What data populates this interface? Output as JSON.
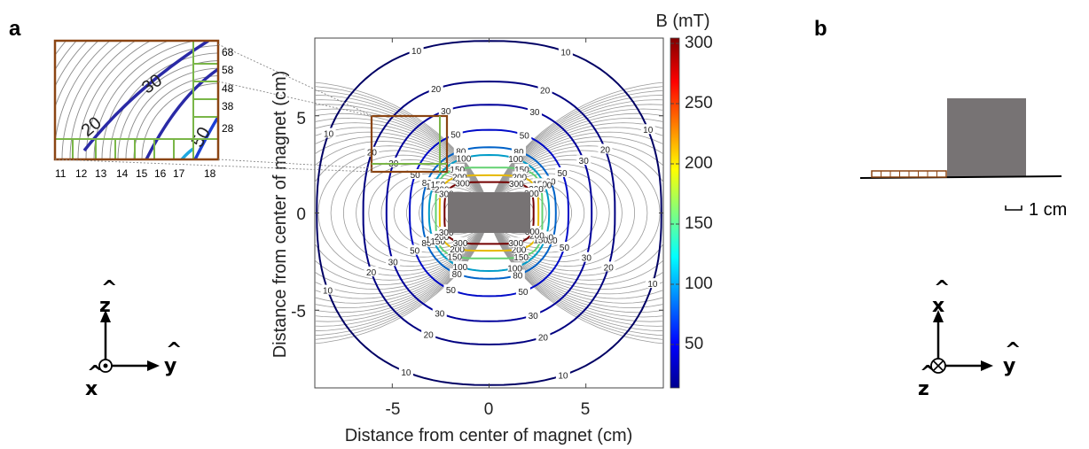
{
  "figure": {
    "panel_a_label": "a",
    "panel_b_label": "b"
  },
  "plot": {
    "xlabel": "Distance from center of magnet (cm)",
    "ylabel": "Distance from center of magnet (cm)",
    "x_ticks": [
      "-5",
      "0",
      "5"
    ],
    "y_ticks": [
      "5",
      "0",
      "-5"
    ],
    "colorbar_title": "B (mT)",
    "colorbar_ticks": [
      "300",
      "250",
      "200",
      "150",
      "100",
      "50"
    ]
  },
  "chart_data": {
    "type": "contour",
    "title": "",
    "xlabel": "Distance from center of magnet (cm)",
    "ylabel": "Distance from center of magnet (cm)",
    "xlim": [
      -9,
      9
    ],
    "ylim": [
      -9,
      9
    ],
    "x_ticks": [
      -5,
      0,
      5
    ],
    "y_ticks": [
      -5,
      0,
      5
    ],
    "colorbar": {
      "label": "B (mT)",
      "range": [
        10,
        300
      ],
      "ticks": [
        50,
        100,
        150,
        200,
        250,
        300
      ],
      "colormap": "jet"
    },
    "contour_levels": [
      10,
      20,
      30,
      50,
      80,
      100,
      150,
      200,
      300
    ],
    "magnet_extent_cm": {
      "x": [
        -2.1,
        2.1
      ],
      "y": [
        -1.0,
        1.0
      ]
    },
    "inset_region_cm": {
      "x": [
        -6,
        -2.3
      ],
      "y": [
        2.2,
        5
      ]
    }
  },
  "inset": {
    "right_labels": [
      "68",
      "58",
      "48",
      "38",
      "28"
    ],
    "bottom_labels": [
      "11",
      "12",
      "13",
      "14",
      "15",
      "16",
      "17",
      "18"
    ],
    "contour_labels": [
      "20",
      "30",
      "50"
    ]
  },
  "axes_a": {
    "z": "z",
    "y": "y",
    "x": "x",
    "hat": "^"
  },
  "panel_b": {
    "scale_label": "1 cm",
    "axes": {
      "x": "x",
      "y": "y",
      "z": "z",
      "hat": "^"
    }
  },
  "colors": {
    "magnet": "#777374",
    "inset_frame": "#8B4513",
    "grid": "#7ab648",
    "field_lines": "#9a9a9a"
  }
}
